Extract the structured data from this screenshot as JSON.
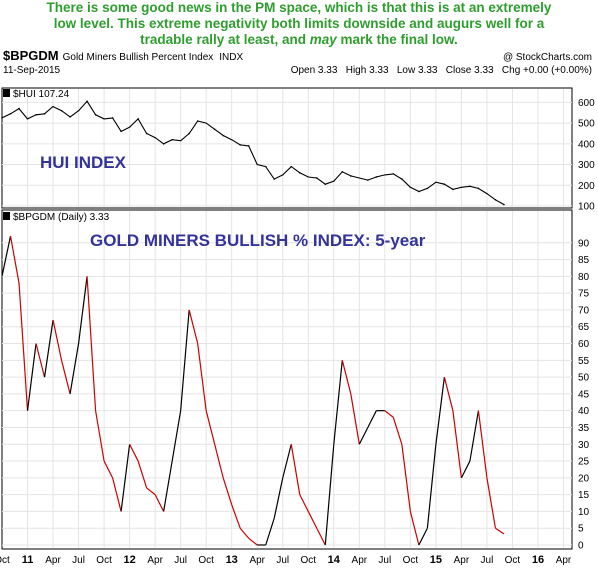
{
  "caption": {
    "line1": "There is some good news in the PM space, which is that this is at an extremely",
    "line2": "low level. This extreme negativity both limits downside and augurs well for a",
    "line3a": "tradable rally at least, and ",
    "line3b": "may",
    "line3c": " mark the final low."
  },
  "header": {
    "symbol": "$BPGDM",
    "name": "Gold Miners Bullish Percent Index",
    "exchange": "INDX",
    "copyright": "@ StockCharts.com",
    "date": "11-Sep-2015",
    "quote": "Open 3.33   High 3.33   Low 3.33   Close 3.33   Chg +0.00 (+0.00%)"
  },
  "annotations": {
    "hui_label": "HUI INDEX",
    "bp_label": "GOLD MINERS BULLISH % INDEX: 5-year"
  },
  "colors": {
    "bull": "#000000",
    "bear": "#cc0000",
    "hui": "#000000",
    "annotation": "#333399",
    "caption": "#2e9e2e",
    "grid": "#e4e4e4"
  },
  "chart_data": [
    {
      "type": "line",
      "legend": "$HUI 107.24",
      "ylim": [
        100,
        650
      ],
      "yticks": [
        100,
        200,
        300,
        400,
        500,
        600
      ],
      "x": [
        "2010-10",
        "2010-11",
        "2010-12",
        "2011-01",
        "2011-02",
        "2011-03",
        "2011-04",
        "2011-05",
        "2011-06",
        "2011-07",
        "2011-08",
        "2011-09",
        "2011-10",
        "2011-11",
        "2011-12",
        "2012-01",
        "2012-02",
        "2012-03",
        "2012-04",
        "2012-05",
        "2012-06",
        "2012-07",
        "2012-08",
        "2012-09",
        "2012-10",
        "2012-11",
        "2012-12",
        "2013-01",
        "2013-02",
        "2013-03",
        "2013-04",
        "2013-05",
        "2013-06",
        "2013-07",
        "2013-08",
        "2013-09",
        "2013-10",
        "2013-11",
        "2013-12",
        "2014-01",
        "2014-02",
        "2014-03",
        "2014-04",
        "2014-05",
        "2014-06",
        "2014-07",
        "2014-08",
        "2014-09",
        "2014-10",
        "2014-11",
        "2014-12",
        "2015-01",
        "2015-02",
        "2015-03",
        "2015-04",
        "2015-05",
        "2015-06",
        "2015-07",
        "2015-08",
        "2015-09"
      ],
      "values": [
        525,
        545,
        570,
        520,
        540,
        545,
        580,
        560,
        530,
        560,
        605,
        540,
        520,
        525,
        460,
        480,
        520,
        450,
        430,
        400,
        420,
        415,
        450,
        510,
        500,
        470,
        440,
        420,
        395,
        390,
        300,
        290,
        230,
        250,
        290,
        260,
        240,
        235,
        205,
        220,
        265,
        245,
        235,
        225,
        240,
        250,
        255,
        230,
        190,
        170,
        185,
        215,
        205,
        180,
        190,
        195,
        185,
        160,
        130,
        107
      ]
    },
    {
      "type": "line",
      "legend": "$BPGDM (Daily) 3.33",
      "ylim": [
        0,
        95
      ],
      "yticks": [
        0,
        5,
        10,
        15,
        20,
        25,
        30,
        35,
        40,
        45,
        50,
        55,
        60,
        65,
        70,
        75,
        80,
        85,
        90
      ],
      "x": [
        "2010-10",
        "2010-11",
        "2010-12",
        "2011-01",
        "2011-02",
        "2011-03",
        "2011-04",
        "2011-05",
        "2011-06",
        "2011-07",
        "2011-08",
        "2011-09",
        "2011-10",
        "2011-11",
        "2011-12",
        "2012-01",
        "2012-02",
        "2012-03",
        "2012-04",
        "2012-05",
        "2012-06",
        "2012-07",
        "2012-08",
        "2012-09",
        "2012-10",
        "2012-11",
        "2012-12",
        "2013-01",
        "2013-02",
        "2013-03",
        "2013-04",
        "2013-05",
        "2013-06",
        "2013-07",
        "2013-08",
        "2013-09",
        "2013-10",
        "2013-11",
        "2013-12",
        "2014-01",
        "2014-02",
        "2014-03",
        "2014-04",
        "2014-05",
        "2014-06",
        "2014-07",
        "2014-08",
        "2014-09",
        "2014-10",
        "2014-11",
        "2014-12",
        "2015-01",
        "2015-02",
        "2015-03",
        "2015-04",
        "2015-05",
        "2015-06",
        "2015-07",
        "2015-08",
        "2015-09"
      ],
      "values": [
        80,
        92,
        78,
        40,
        60,
        50,
        67,
        55,
        45,
        60,
        80,
        40,
        25,
        20,
        10,
        30,
        25,
        17,
        15,
        10,
        25,
        40,
        70,
        60,
        40,
        30,
        20,
        12,
        5,
        2,
        0,
        0,
        8,
        20,
        30,
        15,
        10,
        5,
        0,
        30,
        55,
        45,
        30,
        35,
        40,
        40,
        38,
        30,
        10,
        0,
        5,
        30,
        50,
        40,
        20,
        25,
        40,
        20,
        5,
        3.33
      ]
    }
  ],
  "x_axis": {
    "ticks": [
      {
        "t": 0,
        "label": "Oct"
      },
      {
        "t": 3,
        "label": "11",
        "bold": true
      },
      {
        "t": 6,
        "label": "Apr"
      },
      {
        "t": 9,
        "label": "Jul"
      },
      {
        "t": 12,
        "label": "Oct"
      },
      {
        "t": 15,
        "label": "12",
        "bold": true
      },
      {
        "t": 18,
        "label": "Apr"
      },
      {
        "t": 21,
        "label": "Jul"
      },
      {
        "t": 24,
        "label": "Oct"
      },
      {
        "t": 27,
        "label": "13",
        "bold": true
      },
      {
        "t": 30,
        "label": "Apr"
      },
      {
        "t": 33,
        "label": "Jul"
      },
      {
        "t": 36,
        "label": "Oct"
      },
      {
        "t": 39,
        "label": "14",
        "bold": true
      },
      {
        "t": 42,
        "label": "Apr"
      },
      {
        "t": 45,
        "label": "Jul"
      },
      {
        "t": 48,
        "label": "Oct"
      },
      {
        "t": 51,
        "label": "15",
        "bold": true
      },
      {
        "t": 54,
        "label": "Apr"
      },
      {
        "t": 57,
        "label": "Jul"
      },
      {
        "t": 60,
        "label": "Oct"
      },
      {
        "t": 63,
        "label": "16",
        "bold": true
      },
      {
        "t": 66,
        "label": "Apr"
      }
    ]
  }
}
